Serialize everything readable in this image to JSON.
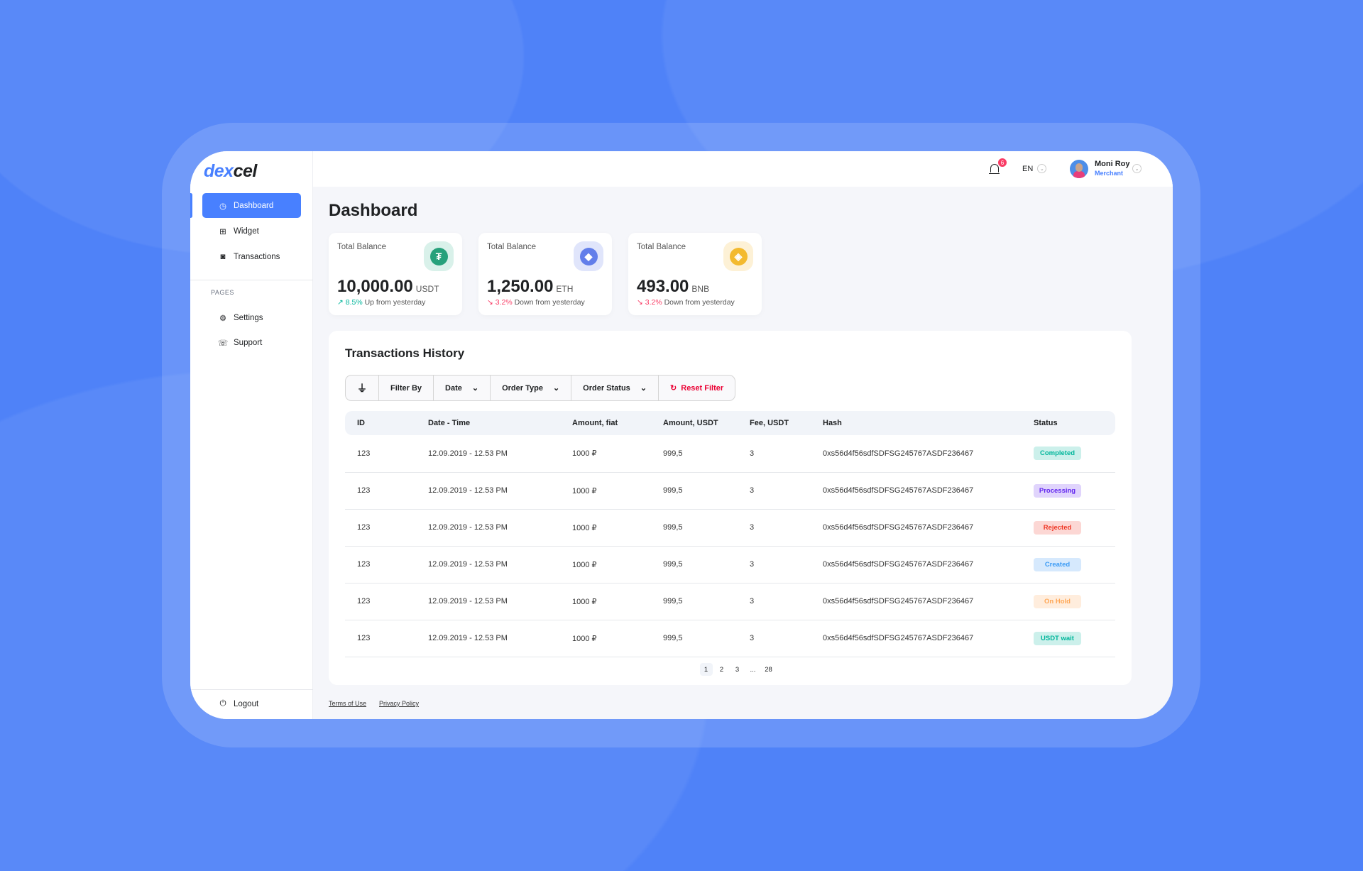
{
  "brand": {
    "part1": "dex",
    "part2": "cel"
  },
  "sidebar": {
    "items": [
      {
        "label": "Dashboard",
        "icon": "speedometer-icon"
      },
      {
        "label": "Widget",
        "icon": "grid-icon"
      },
      {
        "label": "Transactions",
        "icon": "camera-icon"
      }
    ],
    "section_label": "PAGES",
    "pages": [
      {
        "label": "Settings",
        "icon": "gear-icon"
      },
      {
        "label": "Support",
        "icon": "support-icon"
      }
    ],
    "logout": "Logout"
  },
  "header": {
    "notifications": "6",
    "language": "EN",
    "user_name": "Moni Roy",
    "user_role": "Merchant"
  },
  "page_title": "Dashboard",
  "balances": [
    {
      "label": "Total Balance",
      "amount": "10,000.00",
      "unit": "USDT",
      "change": "8.5%",
      "change_text": "Up from yesterday",
      "trend": "up",
      "coin_symbol": "₮",
      "coin_color": "#26a17b",
      "coin_bg": "#d9f1ea"
    },
    {
      "label": "Total Balance",
      "amount": "1,250.00",
      "unit": "ETH",
      "change": "3.2%",
      "change_text": "Down from yesterday",
      "trend": "down",
      "coin_symbol": "◆",
      "coin_color": "#627eea",
      "coin_bg": "#e0e5fb"
    },
    {
      "label": "Total Balance",
      "amount": "493.00",
      "unit": "BNB",
      "change": "3.2%",
      "change_text": "Down from yesterday",
      "trend": "down",
      "coin_symbol": "◈",
      "coin_color": "#f3ba2f",
      "coin_bg": "#fdf1d6"
    }
  ],
  "transactions": {
    "title": "Transactions History",
    "filter": {
      "label": "Filter By",
      "date": "Date",
      "order_type": "Order Type",
      "order_status": "Order Status",
      "reset": "Reset Filter"
    },
    "columns": [
      "ID",
      "Date - Time",
      "Amount, fiat",
      "Amount, USDT",
      "Fee, USDT",
      "Hash",
      "Status"
    ],
    "rows": [
      {
        "id": "123",
        "datetime": "12.09.2019 - 12.53 PM",
        "fiat": "1000 ₽",
        "usdt": "999,5",
        "fee": "3",
        "hash": "0xs56d4f56sdfSDFSG245767ASDF236467",
        "status": "Completed",
        "fg": "#00b69b",
        "bg": "#ccf0eb"
      },
      {
        "id": "123",
        "datetime": "12.09.2019 - 12.53 PM",
        "fiat": "1000 ₽",
        "usdt": "999,5",
        "fee": "3",
        "hash": "0xs56d4f56sdfSDFSG245767ASDF236467",
        "status": "Processing",
        "fg": "#6226ef",
        "bg": "#e0d4fc"
      },
      {
        "id": "123",
        "datetime": "12.09.2019 - 12.53 PM",
        "fiat": "1000 ₽",
        "usdt": "999,5",
        "fee": "3",
        "hash": "0xs56d4f56sdfSDFSG245767ASDF236467",
        "status": "Rejected",
        "fg": "#ef3826",
        "bg": "#fcd7d4"
      },
      {
        "id": "123",
        "datetime": "12.09.2019 - 12.53 PM",
        "fiat": "1000 ₽",
        "usdt": "999,5",
        "fee": "3",
        "hash": "0xs56d4f56sdfSDFSG245767ASDF236467",
        "status": "Created",
        "fg": "#3b9bf5",
        "bg": "#d6e9fd"
      },
      {
        "id": "123",
        "datetime": "12.09.2019 - 12.53 PM",
        "fiat": "1000 ₽",
        "usdt": "999,5",
        "fee": "3",
        "hash": "0xs56d4f56sdfSDFSG245767ASDF236467",
        "status": "On Hold",
        "fg": "#ffa756",
        "bg": "#ffeddd"
      },
      {
        "id": "123",
        "datetime": "12.09.2019 - 12.53 PM",
        "fiat": "1000 ₽",
        "usdt": "999,5",
        "fee": "3",
        "hash": "0xs56d4f56sdfSDFSG245767ASDF236467",
        "status": "USDT wait",
        "fg": "#00b69b",
        "bg": "#ccf0eb"
      }
    ],
    "pagination": [
      "1",
      "2",
      "3",
      "...",
      "28"
    ],
    "current_page": "1"
  },
  "footer": {
    "terms": "Terms of Use",
    "privacy": "Privacy Policy"
  },
  "colors": {
    "accent": "#4880ff",
    "background": "#4f82f8",
    "up": "#00b69b",
    "down": "#f93c65"
  }
}
